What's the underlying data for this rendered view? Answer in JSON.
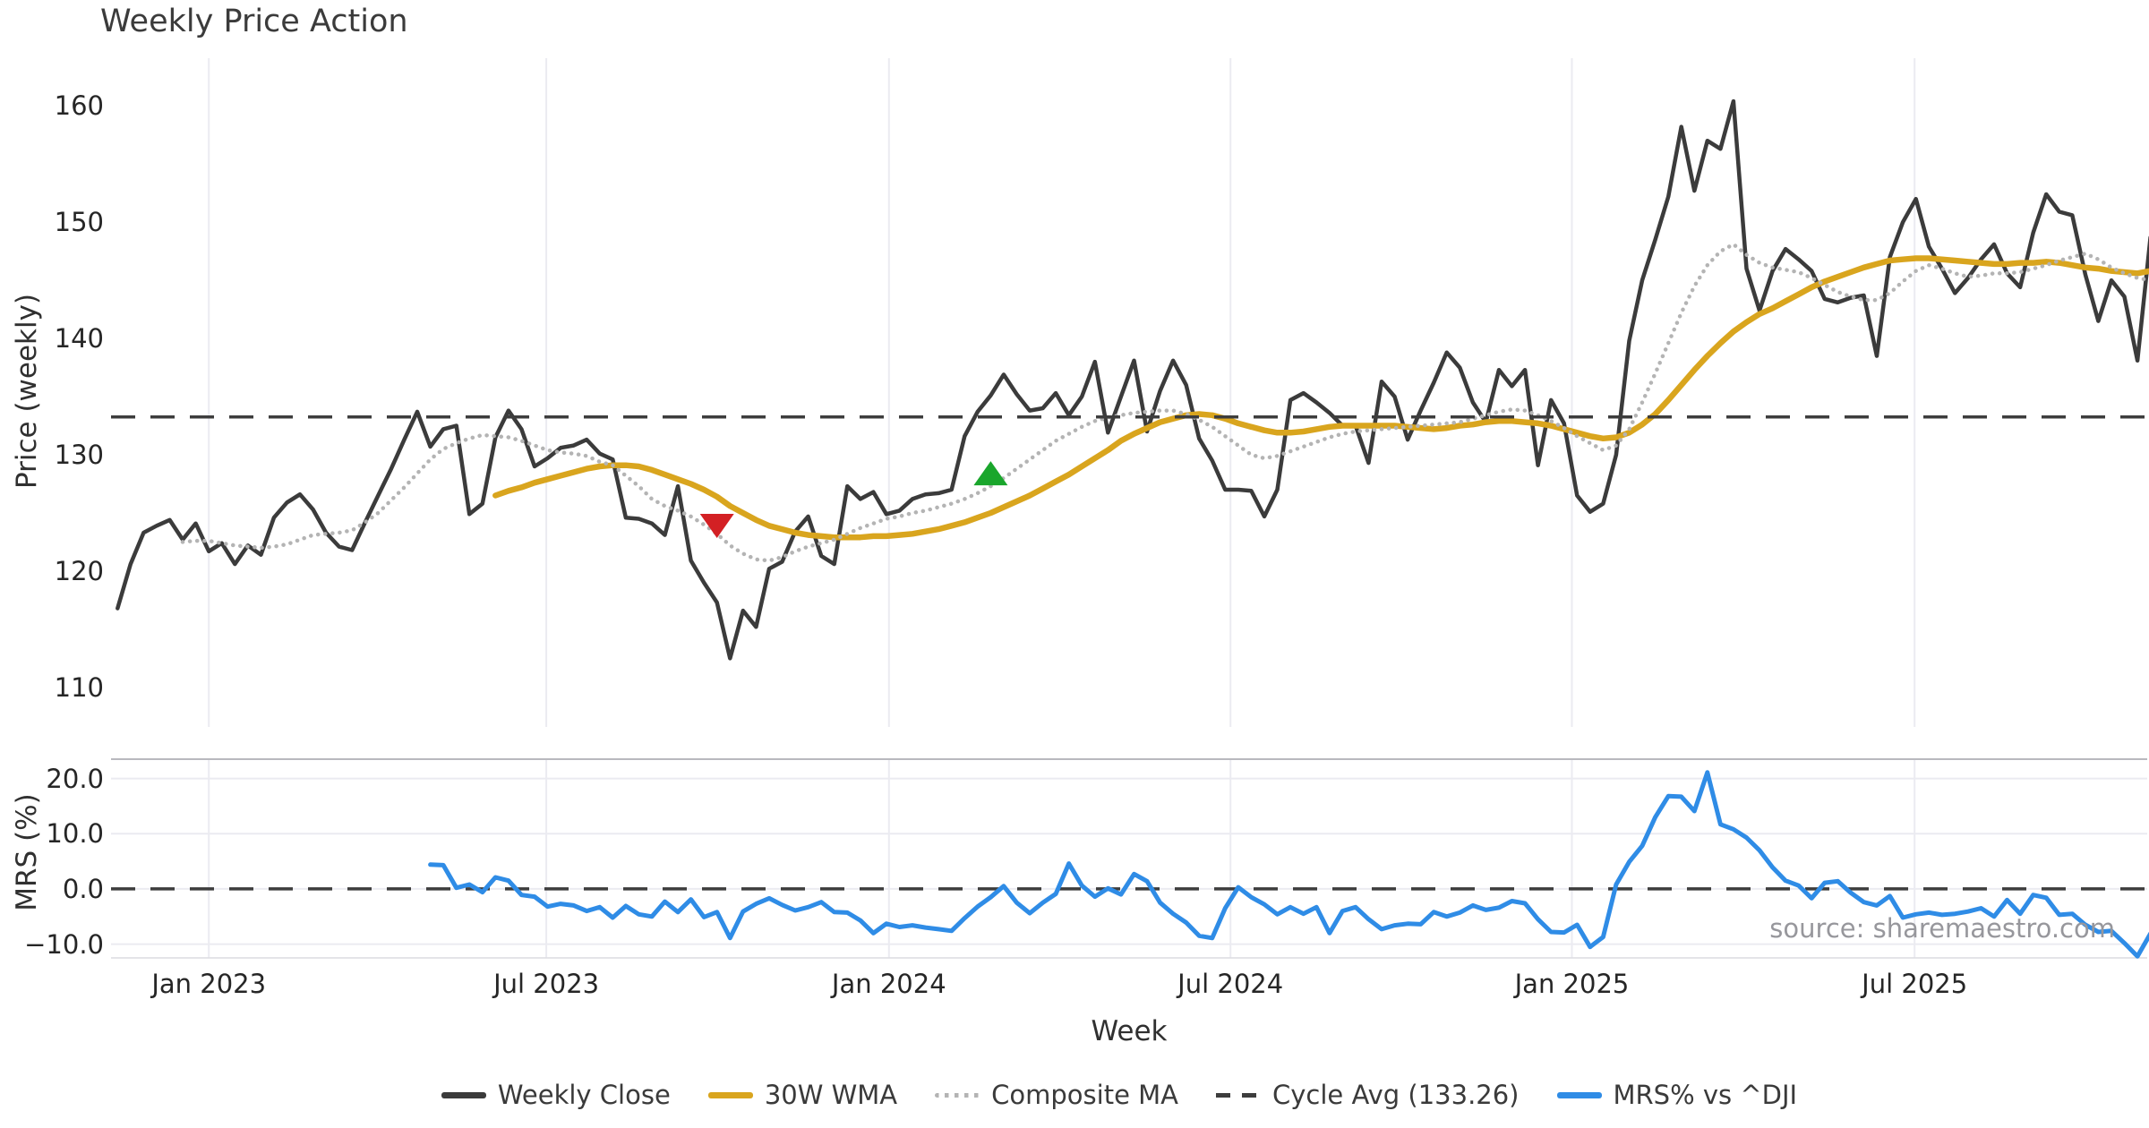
{
  "title": "Weekly Price Action",
  "source_note": "source: sharemaestro.com",
  "chart_data": {
    "type": "line",
    "title": "Weekly Price Action",
    "grid": "vertical-light, mrs-panel-horizontal",
    "legend_position": "bottom-center",
    "x_axis": {
      "label": "Week",
      "range_weeks": [
        -7.5,
        148.75
      ],
      "ticks": [
        {
          "week": 0,
          "label": "Jan 2023"
        },
        {
          "week": 25.9,
          "label": "Jul 2023"
        },
        {
          "week": 52.2,
          "label": "Jan 2024"
        },
        {
          "week": 78.4,
          "label": "Jul 2024"
        },
        {
          "week": 104.6,
          "label": "Jan 2025"
        },
        {
          "week": 130.9,
          "label": "Jul 2025"
        }
      ]
    },
    "price_axis": {
      "label": "Price (weekly)",
      "range": [
        106.6,
        164.1
      ],
      "ticks": [
        {
          "value": 160,
          "label": "160"
        },
        {
          "value": 150,
          "label": "150"
        },
        {
          "value": 140,
          "label": "140"
        },
        {
          "value": 130,
          "label": "130"
        },
        {
          "value": 120,
          "label": "120"
        },
        {
          "value": 110,
          "label": "110"
        }
      ]
    },
    "mrs_axis": {
      "label": "MRS (%)",
      "range": [
        -12.5,
        23.5
      ],
      "gridline_values": [
        20,
        10,
        0,
        -10
      ],
      "ticks": [
        {
          "value": 20,
          "label": "20.0"
        },
        {
          "value": 10,
          "label": "10.0"
        },
        {
          "value": 0,
          "label": "0.0"
        },
        {
          "value": -10,
          "label": "−10.0"
        }
      ]
    },
    "cycle_avg_value": 133.26,
    "series": [
      {
        "name": "Weekly Close",
        "panel": "main",
        "style": "solid",
        "color": "#3b3b3b",
        "width": 4.5,
        "start_week": -7,
        "values": [
          116.8,
          120.6,
          123.3,
          123.9,
          124.4,
          122.7,
          124.1,
          121.7,
          122.4,
          120.6,
          122.2,
          121.4,
          124.6,
          125.9,
          126.6,
          125.3,
          123.3,
          122.1,
          121.8,
          124.2,
          126.5,
          128.8,
          131.3,
          133.7,
          130.7,
          132.2,
          132.5,
          124.9,
          125.8,
          131.5,
          133.8,
          132.2,
          129.0,
          129.7,
          130.6,
          130.8,
          131.3,
          130.1,
          129.6,
          124.6,
          124.5,
          124.1,
          123.1,
          127.3,
          120.9,
          119.0,
          117.3,
          112.5,
          116.6,
          115.2,
          120.2,
          120.8,
          123.4,
          124.7,
          121.3,
          120.6,
          127.3,
          126.2,
          126.8,
          124.9,
          125.2,
          126.2,
          126.6,
          126.7,
          127.0,
          131.6,
          133.7,
          135.1,
          136.9,
          135.2,
          133.8,
          134.0,
          135.3,
          133.4,
          135.0,
          138.0,
          131.9,
          135.0,
          138.1,
          132.0,
          135.5,
          138.1,
          136.0,
          131.4,
          129.5,
          127.0,
          127.0,
          126.9,
          124.7,
          127.0,
          134.7,
          135.3,
          134.5,
          133.6,
          132.5,
          132.5,
          129.3,
          136.3,
          135.0,
          131.3,
          133.8,
          136.2,
          138.8,
          137.5,
          134.5,
          132.8,
          137.3,
          135.9,
          137.3,
          129.1,
          134.7,
          132.7,
          126.5,
          125.1,
          125.8,
          130.0,
          139.8,
          145.0,
          148.5,
          152.2,
          158.2,
          152.7,
          157.0,
          156.3,
          160.4,
          146.0,
          142.4,
          145.8,
          147.7,
          146.8,
          145.8,
          143.4,
          143.1,
          143.5,
          143.7,
          138.5,
          147.0,
          150.0,
          152.0,
          147.9,
          146.0,
          143.9,
          145.2,
          146.8,
          148.1,
          145.6,
          144.4,
          149.1,
          152.4,
          150.9,
          150.6,
          145.5,
          141.5,
          145.0,
          143.6,
          138.1,
          148.7
        ]
      },
      {
        "name": "30W WMA",
        "panel": "main",
        "style": "solid",
        "color": "#d9a51e",
        "width": 6.5,
        "start_week": 22,
        "values": [
          126.5,
          126.9,
          127.2,
          127.6,
          127.9,
          128.2,
          128.5,
          128.8,
          129.0,
          129.1,
          129.1,
          129.0,
          128.7,
          128.3,
          127.9,
          127.5,
          127.0,
          126.4,
          125.6,
          125.0,
          124.4,
          123.9,
          123.6,
          123.3,
          123.1,
          123.0,
          122.9,
          122.9,
          122.9,
          123.0,
          123.0,
          123.1,
          123.2,
          123.4,
          123.6,
          123.9,
          124.2,
          124.6,
          125.0,
          125.5,
          126.0,
          126.5,
          127.1,
          127.7,
          128.3,
          129.0,
          129.7,
          130.4,
          131.2,
          131.8,
          132.3,
          132.8,
          133.1,
          133.4,
          133.5,
          133.4,
          133.1,
          132.7,
          132.4,
          132.1,
          131.9,
          131.9,
          132.0,
          132.2,
          132.4,
          132.5,
          132.5,
          132.5,
          132.5,
          132.5,
          132.4,
          132.3,
          132.2,
          132.3,
          132.5,
          132.6,
          132.8,
          132.9,
          132.9,
          132.8,
          132.7,
          132.5,
          132.2,
          131.9,
          131.6,
          131.4,
          131.5,
          131.9,
          132.6,
          133.5,
          134.7,
          136.0,
          137.3,
          138.5,
          139.6,
          140.6,
          141.4,
          142.1,
          142.6,
          143.2,
          143.8,
          144.4,
          144.9,
          145.3,
          145.7,
          146.1,
          146.4,
          146.7,
          146.8,
          146.9,
          146.9,
          146.8,
          146.7,
          146.6,
          146.5,
          146.4,
          146.4,
          146.5,
          146.5,
          146.6,
          146.5,
          146.3,
          146.1,
          146.0,
          145.8,
          145.7,
          145.6,
          145.8
        ]
      },
      {
        "name": "Composite MA",
        "panel": "main",
        "style": "dotted",
        "color": "#b4b4b4",
        "width": 4.5,
        "start_week": -2,
        "values": [
          122.5,
          122.6,
          122.6,
          122.4,
          122.2,
          122.1,
          122.0,
          122.1,
          122.3,
          122.7,
          123.1,
          123.2,
          123.3,
          123.5,
          124.2,
          125.0,
          126.1,
          127.2,
          128.4,
          129.6,
          130.5,
          131.0,
          131.4,
          131.7,
          131.6,
          131.5,
          131.2,
          130.8,
          130.4,
          130.2,
          130.1,
          129.9,
          129.4,
          129.1,
          128.2,
          127.3,
          126.2,
          125.6,
          125.2,
          124.7,
          124.0,
          123.2,
          122.2,
          121.5,
          121.0,
          120.9,
          121.2,
          121.7,
          122.1,
          122.4,
          122.7,
          123.2,
          123.7,
          124.1,
          124.5,
          124.7,
          125.0,
          125.2,
          125.5,
          125.8,
          126.2,
          126.7,
          127.3,
          128.0,
          128.8,
          129.6,
          130.4,
          131.2,
          131.8,
          132.4,
          132.9,
          133.2,
          133.4,
          133.6,
          133.7,
          133.8,
          133.8,
          133.5,
          133.0,
          132.4,
          131.6,
          130.8,
          130.0,
          129.7,
          129.9,
          130.3,
          130.7,
          131.1,
          131.5,
          131.8,
          132.0,
          132.1,
          132.2,
          132.3,
          132.4,
          132.5,
          132.6,
          132.7,
          132.8,
          133.1,
          133.4,
          133.7,
          133.9,
          133.8,
          133.4,
          132.9,
          132.3,
          131.6,
          131.0,
          130.4,
          130.8,
          132.2,
          134.5,
          137.0,
          139.6,
          142.2,
          144.5,
          146.3,
          147.5,
          148.1,
          147.2,
          146.5,
          146.1,
          145.9,
          145.7,
          145.2,
          144.6,
          144.0,
          143.6,
          143.3,
          143.3,
          143.9,
          144.9,
          145.8,
          146.3,
          146.0,
          145.6,
          145.3,
          145.4,
          145.6,
          145.6,
          145.7,
          146.0,
          146.3,
          146.7,
          147.0,
          147.3,
          146.8,
          146.1,
          145.6,
          145.2,
          145.0
        ]
      },
      {
        "name": "Cycle Avg (133.26)",
        "panel": "main",
        "style": "dashed",
        "color": "#3d3d3d",
        "width": 3.5,
        "constant": 133.26
      },
      {
        "name": "MRS% vs ^DJI",
        "panel": "mrs",
        "style": "solid",
        "color": "#2f8ce6",
        "width": 5,
        "start_week": 17,
        "values": [
          4.4,
          4.3,
          0.2,
          0.8,
          -0.6,
          2.1,
          1.5,
          -1.1,
          -1.4,
          -3.2,
          -2.7,
          -3.0,
          -4.0,
          -3.3,
          -5.2,
          -3.1,
          -4.6,
          -5.0,
          -2.3,
          -4.2,
          -1.9,
          -5.1,
          -4.2,
          -8.9,
          -4.1,
          -2.7,
          -1.7,
          -2.9,
          -3.9,
          -3.3,
          -2.4,
          -4.2,
          -4.3,
          -5.7,
          -8.0,
          -6.3,
          -6.9,
          -6.6,
          -7.0,
          -7.3,
          -7.6,
          -5.3,
          -3.2,
          -1.5,
          0.5,
          -2.5,
          -4.4,
          -2.5,
          -0.9,
          4.6,
          0.6,
          -1.4,
          0.1,
          -1.0,
          2.7,
          1.4,
          -2.5,
          -4.5,
          -6.1,
          -8.5,
          -8.9,
          -3.5,
          0.3,
          -1.5,
          -2.8,
          -4.6,
          -3.3,
          -4.5,
          -3.3,
          -8.0,
          -4.0,
          -3.3,
          -5.5,
          -7.3,
          -6.6,
          -6.3,
          -6.4,
          -4.2,
          -5.0,
          -4.3,
          -3.0,
          -3.8,
          -3.4,
          -2.2,
          -2.6,
          -5.5,
          -7.8,
          -7.9,
          -6.5,
          -10.5,
          -8.7,
          0.8,
          4.9,
          7.8,
          13.0,
          16.8,
          16.7,
          14.1,
          21.1,
          11.7,
          10.8,
          9.3,
          7.0,
          3.9,
          1.5,
          0.6,
          -1.7,
          1.1,
          1.4,
          -0.7,
          -2.4,
          -3.0,
          -1.3,
          -5.2,
          -4.6,
          -4.3,
          -4.7,
          -4.5,
          -4.1,
          -3.5,
          -5.0,
          -2.0,
          -4.5,
          -1.1,
          -1.6,
          -4.7,
          -4.5,
          -6.5,
          -7.8,
          -7.6,
          -9.8,
          -12.2,
          -8.1
        ]
      }
    ],
    "markers": [
      {
        "type": "sell-signal",
        "shape": "triangle-down",
        "color": "#d32024",
        "week": 39,
        "price": 124.0
      },
      {
        "type": "buy-signal",
        "shape": "triangle-up",
        "color": "#1aa62c",
        "week": 60,
        "price": 128.3
      }
    ]
  },
  "legend": {
    "items": [
      {
        "label": "Weekly Close",
        "color": "#3b3b3b",
        "style": "solid"
      },
      {
        "label": "30W WMA",
        "color": "#d9a51e",
        "style": "solid"
      },
      {
        "label": "Composite MA",
        "color": "#b4b4b4",
        "style": "dotted"
      },
      {
        "label": "Cycle Avg (133.26)",
        "color": "#3d3d3d",
        "style": "dashed"
      },
      {
        "label": "MRS% vs ^DJI",
        "color": "#2f8ce6",
        "style": "solid"
      }
    ]
  },
  "colors": {
    "background": "#ffffff",
    "gridline": "#ebebf1",
    "panel_border_top": "#b9b9be",
    "panel_border_bottom": "#dcdce1",
    "tick_text": "#262626",
    "title_text": "#3b3b3b",
    "source_text": "#97979c"
  }
}
